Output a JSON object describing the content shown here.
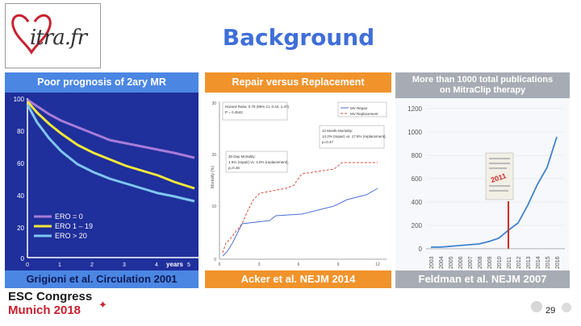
{
  "logo": {
    "brand": "itra.fr",
    "mark": "heart-m-logo"
  },
  "title": "Background",
  "panels": {
    "left": {
      "header": "Poor prognosis of 2ary MR",
      "footer": "Grigioni et al. Circulation 2001",
      "y_ticks": [
        "100",
        "80",
        "60",
        "40",
        "20",
        "0"
      ],
      "x_ticks": [
        "0",
        "1",
        "2",
        "3",
        "4",
        "5"
      ],
      "x_unit": "years",
      "legend": [
        "ERO = 0",
        "ERO 1 – 19",
        "ERO > 20"
      ],
      "colors": [
        "#a77bd9",
        "#f3e83a",
        "#7fc6f0"
      ]
    },
    "middle": {
      "header": "Repair versus Replacement",
      "footer": "Acker et al. NEJM 2014",
      "y_label": "Mortality (%)",
      "y_ticks": [
        "30",
        "20",
        "10",
        "0"
      ],
      "x_ticks": [
        "0",
        "3",
        "6",
        "9",
        "12"
      ],
      "hazard": [
        "Hazard Ratio, 0.79 (95% CI, 0.42, 1.47)",
        "P = 0.4542"
      ],
      "day30": [
        "30 Day Mortality:",
        "1.6% (repair) vs. 4.0% (replacement),",
        "p=0.26"
      ],
      "month12": [
        "12 Month Mortality:",
        "14.2% (repair) vs. 17.6% (replacement),",
        "p=0.47"
      ],
      "legend": [
        "MV Repair",
        "MV Replacement"
      ]
    },
    "right": {
      "header_line1": "More than 1000 total publications",
      "header_line2": "on MitraClip therapy",
      "footer": "Feldman et al. NEJM 2007",
      "stamp": "2011",
      "y_ticks": [
        "1200",
        "1000",
        "800",
        "600",
        "400",
        "200",
        "0"
      ],
      "x_ticks": [
        "2003",
        "2004",
        "2005",
        "2006",
        "2007",
        "2008",
        "2009",
        "2010",
        "2011",
        "2012",
        "2013",
        "2014",
        "2015",
        "2016"
      ]
    }
  },
  "footer": {
    "line1": "ESC Congress",
    "line2": "Munich 2018",
    "page": "29"
  }
}
